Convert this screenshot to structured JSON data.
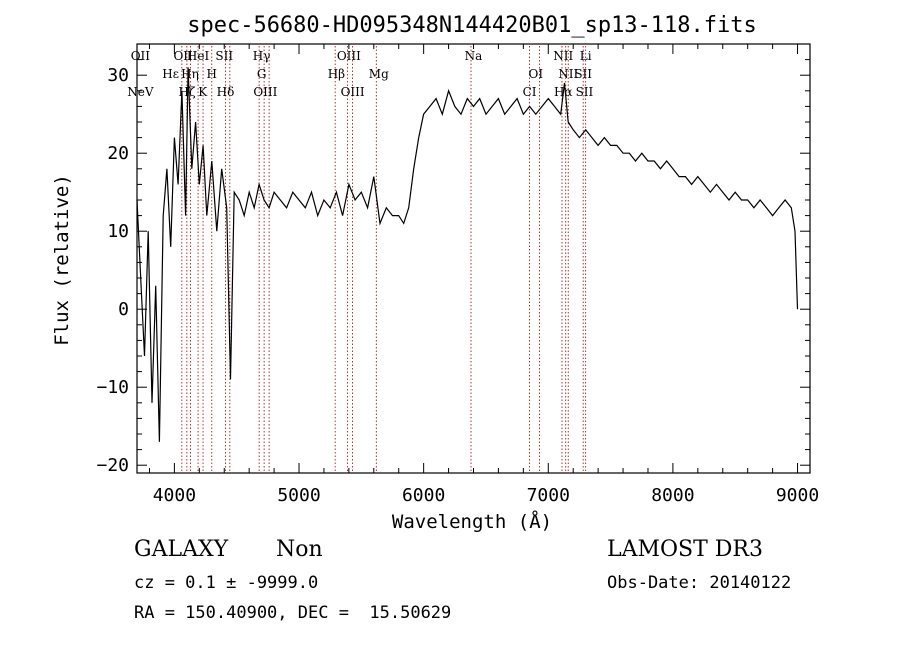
{
  "chart_data": {
    "type": "line",
    "title": "spec-56680-HD095348N144420B01_sp13-118.fits",
    "xlabel": "Wavelength (Å)",
    "ylabel": "Flux (relative)",
    "xlim": [
      3700,
      9100
    ],
    "ylim": [
      -21,
      34
    ],
    "xticks": [
      4000,
      5000,
      6000,
      7000,
      8000,
      9000
    ],
    "yticks": [
      -20,
      -10,
      0,
      10,
      20,
      30
    ],
    "grid": false,
    "series": [
      {
        "x": [
          3700,
          3730,
          3760,
          3790,
          3820,
          3850,
          3880,
          3910,
          3940,
          3970,
          4000,
          4030,
          4060,
          4090,
          4110,
          4140,
          4170,
          4200,
          4230,
          4260,
          4300,
          4340,
          4380,
          4420,
          4450,
          4480,
          4520,
          4560,
          4600,
          4640,
          4680,
          4720,
          4760,
          4800,
          4850,
          4900,
          4950,
          5000,
          5050,
          5100,
          5150,
          5200,
          5250,
          5300,
          5350,
          5400,
          5450,
          5500,
          5550,
          5600,
          5650,
          5700,
          5750,
          5800,
          5840,
          5880,
          5920,
          5960,
          6000,
          6050,
          6100,
          6150,
          6200,
          6250,
          6300,
          6350,
          6400,
          6450,
          6500,
          6550,
          6600,
          6650,
          6700,
          6750,
          6800,
          6850,
          6900,
          6950,
          7000,
          7050,
          7100,
          7130,
          7160,
          7200,
          7250,
          7300,
          7350,
          7400,
          7450,
          7500,
          7550,
          7600,
          7650,
          7700,
          7750,
          7800,
          7850,
          7900,
          7950,
          8000,
          8050,
          8100,
          8150,
          8200,
          8250,
          8300,
          8350,
          8400,
          8450,
          8500,
          8550,
          8600,
          8650,
          8700,
          8750,
          8800,
          8850,
          8900,
          8950,
          8980,
          9000
        ],
        "y": [
          14,
          4,
          -6,
          10,
          -12,
          3,
          -17,
          12,
          18,
          8,
          22,
          16,
          28,
          12,
          31,
          18,
          24,
          16,
          21,
          12,
          19,
          10,
          18,
          13,
          -9,
          15,
          14,
          12,
          15,
          13,
          16,
          14,
          13,
          15,
          14,
          13,
          15,
          14,
          13,
          15,
          12,
          14,
          13,
          15,
          12,
          16,
          14,
          15,
          13,
          17,
          11,
          13,
          12,
          12,
          11,
          13,
          18,
          22,
          25,
          26,
          27,
          25,
          28,
          26,
          25,
          27,
          26,
          27,
          25,
          26,
          27,
          25,
          26,
          27,
          25,
          26,
          25,
          26,
          27,
          26,
          25,
          29,
          24,
          23,
          22,
          23,
          22,
          21,
          22,
          21,
          21,
          20,
          20,
          19,
          20,
          19,
          19,
          18,
          19,
          18,
          17,
          17,
          16,
          17,
          16,
          15,
          16,
          15,
          14,
          15,
          14,
          14,
          13,
          14,
          13,
          12,
          13,
          14,
          13,
          10,
          0
        ]
      }
    ],
    "line_labels": [
      {
        "text": "NeV",
        "wavelength": 3727,
        "row": 3
      },
      {
        "text": "OII",
        "wavelength": 3727,
        "row": 0
      },
      {
        "text": "Hε",
        "wavelength": 3970,
        "row": 1
      },
      {
        "text": "OII",
        "wavelength": 4070,
        "row": 0
      },
      {
        "text": "Hζ",
        "wavelength": 4101,
        "row": 2
      },
      {
        "text": "Hη",
        "wavelength": 4125,
        "row": 1
      },
      {
        "text": "HeI",
        "wavelength": 4190,
        "row": 0
      },
      {
        "text": "K",
        "wavelength": 4227,
        "row": 2
      },
      {
        "text": "H",
        "wavelength": 4300,
        "row": 1
      },
      {
        "text": "SII",
        "wavelength": 4400,
        "row": 0
      },
      {
        "text": "Hδ",
        "wavelength": 4410,
        "row": 2
      },
      {
        "text": "Hγ",
        "wavelength": 4700,
        "row": 0
      },
      {
        "text": "G",
        "wavelength": 4700,
        "row": 1
      },
      {
        "text": "OIII",
        "wavelength": 4730,
        "row": 2
      },
      {
        "text": "OIII",
        "wavelength": 5400,
        "row": 0
      },
      {
        "text": "Hβ",
        "wavelength": 5300,
        "row": 1
      },
      {
        "text": "OIII",
        "wavelength": 5430,
        "row": 2
      },
      {
        "text": "Mg",
        "wavelength": 5640,
        "row": 1
      },
      {
        "text": "Na",
        "wavelength": 6400,
        "row": 0
      },
      {
        "text": "OI",
        "wavelength": 6900,
        "row": 1
      },
      {
        "text": "CI",
        "wavelength": 6850,
        "row": 2
      },
      {
        "text": "NII",
        "wavelength": 7120,
        "row": 0
      },
      {
        "text": "NII",
        "wavelength": 7160,
        "row": 1
      },
      {
        "text": "Hα",
        "wavelength": 7120,
        "row": 2
      },
      {
        "text": "Li",
        "wavelength": 7300,
        "row": 0
      },
      {
        "text": "SII",
        "wavelength": 7280,
        "row": 1
      },
      {
        "text": "SII",
        "wavelength": 7290,
        "row": 2
      }
    ],
    "reference_lines": [
      4060,
      4100,
      4130,
      4190,
      4230,
      4300,
      4410,
      4445,
      4680,
      4720,
      4760,
      5290,
      5390,
      5430,
      5620,
      6380,
      6850,
      6930,
      7110,
      7140,
      7160,
      7280,
      7300
    ],
    "colors": {
      "spectrum": "#000000",
      "reference": "#a00000"
    }
  },
  "info": {
    "class_label": "GALAXY",
    "subclass_label": "Non",
    "survey": "LAMOST DR3",
    "cz": "cz = 0.1 ± -9999.0",
    "obs_date": "Obs-Date: 20140122",
    "coords": "RA = 150.40900, DEC =  15.50629"
  }
}
